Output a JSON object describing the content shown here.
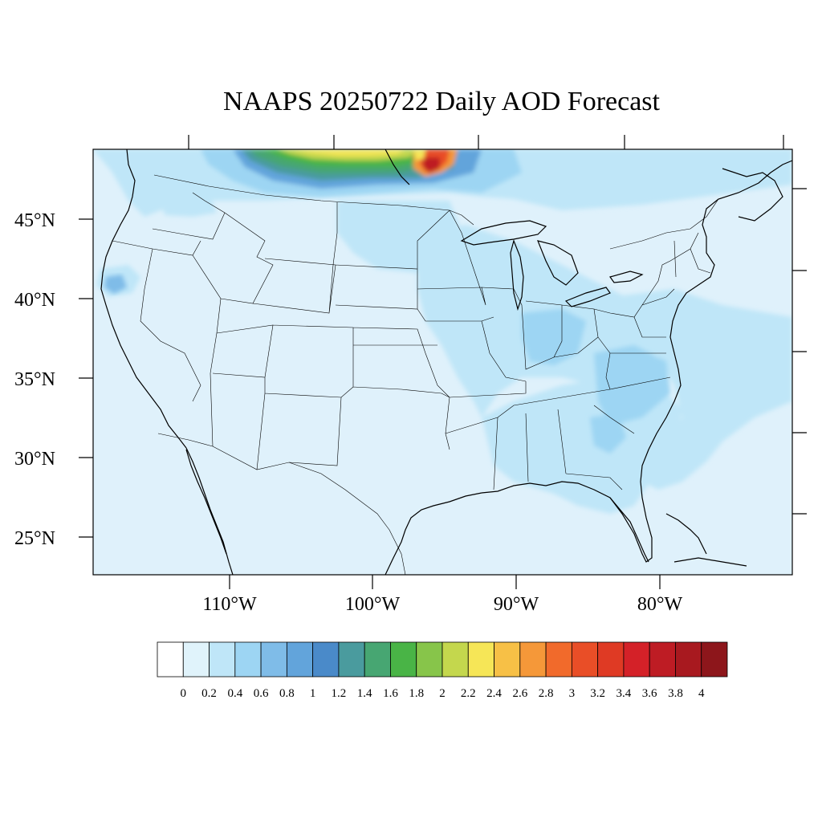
{
  "title": "NAAPS 20250722 Daily AOD Forecast",
  "map": {
    "projection": "lambert-conformal",
    "lat_ticks": [
      {
        "label": "45°N"
      },
      {
        "label": "40°N"
      },
      {
        "label": "35°N"
      },
      {
        "label": "30°N"
      },
      {
        "label": "25°N"
      }
    ],
    "lon_ticks": [
      {
        "label": "110°W"
      },
      {
        "label": "100°W"
      },
      {
        "label": "90°W"
      },
      {
        "label": "80°W"
      }
    ],
    "background_aod_color": "#dff1fb",
    "feature": "Smoke plume along the northern border (southern Canada) with peak AOD above 4 near 96°W",
    "regions": [
      {
        "name": "pacific-northwest-light",
        "aod": "0.2-0.4"
      },
      {
        "name": "northern-plains",
        "aod": "0.2-0.4"
      },
      {
        "name": "midwest-ohio-valley",
        "aod": "0.4-0.6"
      },
      {
        "name": "southeast-carolinas",
        "aod": "0.4-0.6"
      },
      {
        "name": "western-atlantic",
        "aod": "0.2-0.4"
      },
      {
        "name": "northern-california-coast",
        "aod": "0.6-0.8"
      },
      {
        "name": "canadian-smoke-plume",
        "aod": "1.0-4.0+"
      }
    ]
  },
  "colorbar": {
    "colors": [
      "#ffffff",
      "#e0f3fb",
      "#bfe6f8",
      "#9dd5f3",
      "#7fbce8",
      "#62a4db",
      "#4a8ac9",
      "#4a9b9e",
      "#47a672",
      "#49b446",
      "#87c54a",
      "#c4d74d",
      "#f6e657",
      "#f7c046",
      "#f59839",
      "#f16a2b",
      "#e94e27",
      "#df3a24",
      "#d42128",
      "#be1c24",
      "#a8191f",
      "#8d161b"
    ],
    "labels": [
      "0",
      "0.2",
      "0.4",
      "0.6",
      "0.8",
      "1",
      "1.2",
      "1.4",
      "1.6",
      "1.8",
      "2",
      "2.2",
      "2.4",
      "2.6",
      "2.8",
      "3",
      "3.2",
      "3.4",
      "3.6",
      "3.8",
      "4"
    ]
  }
}
